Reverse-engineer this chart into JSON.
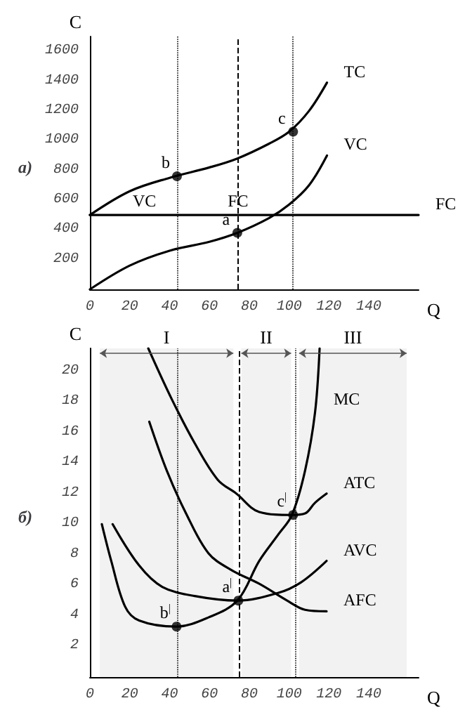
{
  "chart_data": [
    {
      "type": "line",
      "title": "а)",
      "xlabel": "Q",
      "ylabel": "C",
      "xlim": [
        0,
        165
      ],
      "ylim": [
        0,
        1700
      ],
      "xticks": [
        0,
        20,
        40,
        60,
        80,
        100,
        120,
        140
      ],
      "yticks": [
        200,
        400,
        600,
        800,
        1000,
        1200,
        1400,
        1600
      ],
      "grid": false,
      "legend": false,
      "marker": "none",
      "line_style": "solid",
      "series": [
        {
          "name": "TC",
          "color": "#000000",
          "x": [
            0,
            20,
            40,
            60,
            74,
            90,
            100,
            110,
            119
          ],
          "values": [
            500,
            660,
            750,
            820,
            880,
            980,
            1060,
            1200,
            1390
          ]
        },
        {
          "name": "VC",
          "color": "#000000",
          "x": [
            0,
            20,
            40,
            60,
            74,
            90,
            100,
            110,
            119
          ],
          "values": [
            0,
            160,
            260,
            320,
            380,
            480,
            570,
            700,
            900
          ]
        },
        {
          "name": "FC",
          "color": "#000000",
          "x": [
            0,
            165
          ],
          "values": [
            500,
            500
          ]
        },
        {
          "type": "scatter",
          "marker": "circle",
          "color": "#000000",
          "x": [
            74,
            43.7,
            102
          ],
          "values": [
            380,
            760,
            1060
          ]
        }
      ],
      "ref_lines": [
        {
          "axis": "x",
          "value": 43.7,
          "line_style": "dotted"
        },
        {
          "axis": "x",
          "value": 74,
          "line_style": "dashed"
        },
        {
          "axis": "x",
          "value": 102,
          "line_style": "dotted"
        }
      ],
      "annotations": [
        {
          "text": "a",
          "x": 74,
          "y": 380
        },
        {
          "text": "b",
          "x": 43.7,
          "y": 760
        },
        {
          "text": "c",
          "x": 102,
          "y": 1060
        },
        {
          "text": "VC",
          "x": 33,
          "y": 500
        },
        {
          "text": "FC",
          "x": 80,
          "y": 500
        }
      ]
    },
    {
      "type": "line",
      "title": "б)",
      "xlabel": "Q",
      "ylabel": "C",
      "xlim": [
        0,
        165
      ],
      "ylim": [
        0,
        21.5
      ],
      "xticks": [
        0,
        20,
        40,
        60,
        80,
        100,
        120,
        140
      ],
      "yticks": [
        2,
        4,
        6,
        8,
        10,
        12,
        14,
        16,
        18,
        20
      ],
      "grid": false,
      "legend": false,
      "marker": "none",
      "line_style": "solid",
      "series": [
        {
          "name": "MC",
          "color": "#000000",
          "x": [
            6,
            10.7,
            17.7,
            24.7,
            43.3,
            59.5,
            74,
            85,
            94.4,
            101.4,
            108,
            113,
            115.3
          ],
          "values": [
            10,
            7.6,
            4.6,
            3.7,
            3.3,
            3.9,
            5,
            7.6,
            9.3,
            10.6,
            13.5,
            17.3,
            21.5
          ]
        },
        {
          "name": "ATC",
          "color": "#000000",
          "x": [
            29.3,
            41,
            52.6,
            64.2,
            73.5,
            85,
            101.4,
            108,
            113,
            118.8
          ],
          "values": [
            21.5,
            18.2,
            15.3,
            12.9,
            12,
            10.8,
            10.6,
            10.7,
            11.4,
            12
          ]
        },
        {
          "name": "AVC",
          "color": "#000000",
          "x": [
            11.4,
            24.7,
            36.3,
            52.6,
            74,
            94.4,
            106,
            118.8
          ],
          "values": [
            10,
            7.3,
            5.9,
            5.3,
            5,
            5.5,
            6.2,
            7.6
          ]
        },
        {
          "name": "AFC",
          "color": "#000000",
          "x": [
            29.8,
            38.6,
            47.9,
            59.5,
            71,
            85,
            99,
            108,
            118.8
          ],
          "values": [
            16.7,
            13.5,
            10.8,
            8.1,
            7,
            6.1,
            5,
            4.4,
            4.3
          ]
        },
        {
          "type": "scatter",
          "marker": "circle",
          "color": "#000000",
          "x": [
            74.5,
            43.5,
            102
          ],
          "values": [
            5,
            3.3,
            10.6
          ]
        }
      ],
      "ref_lines": [
        {
          "axis": "x",
          "value": 43.7,
          "line_style": "dotted"
        },
        {
          "axis": "x",
          "value": 75,
          "line_style": "dashed"
        },
        {
          "axis": "x",
          "value": 103,
          "line_style": "dotted"
        }
      ],
      "bands": [
        {
          "axis": "x",
          "from": 5,
          "to": 72,
          "label": "I",
          "color": "#f2f2f2"
        },
        {
          "axis": "x",
          "from": 76,
          "to": 101,
          "label": "II",
          "color": "#f2f2f2"
        },
        {
          "axis": "x",
          "from": 105,
          "to": 159,
          "label": "III",
          "color": "#f2f2f2"
        }
      ],
      "annotations": [
        {
          "text": "a$^{|}$",
          "x": 74.5,
          "y": 5
        },
        {
          "text": "b$^{|}$",
          "x": 43.5,
          "y": 3.3
        },
        {
          "text": "c$^{|}$",
          "x": 102,
          "y": 10.6
        }
      ]
    }
  ]
}
